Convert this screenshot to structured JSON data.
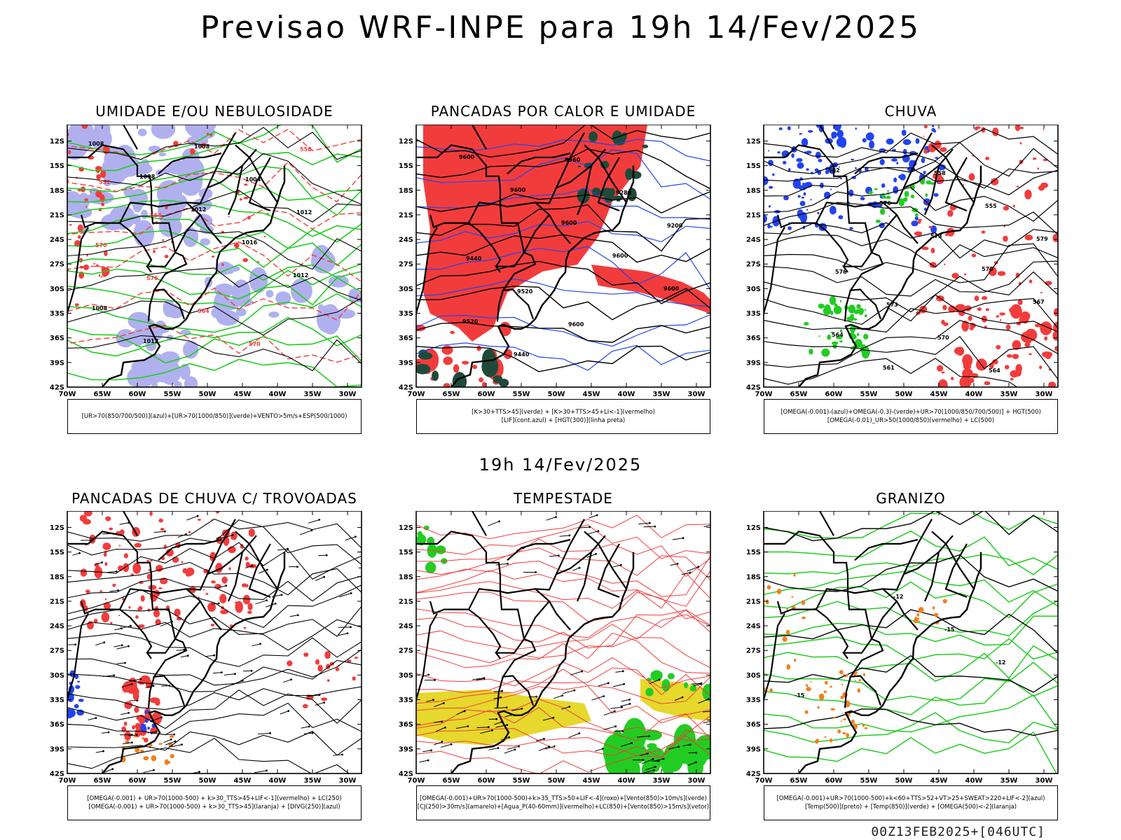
{
  "header": {
    "title": "Previsao WRF-INPE  para 19h 14/Fev/2025"
  },
  "middle": {
    "title": "19h 14/Fev/2025"
  },
  "footer": {
    "run": "00Z13FEB2025+[046UTC]"
  },
  "axes": {
    "lat_labels": [
      "12S",
      "15S",
      "18S",
      "21S",
      "24S",
      "27S",
      "30S",
      "33S",
      "36S",
      "39S",
      "42S"
    ],
    "lon_labels": [
      "70W",
      "65W",
      "60W",
      "55W",
      "50W",
      "45W",
      "40W",
      "35W",
      "30W"
    ]
  },
  "colors": {
    "red": "#f23c3c",
    "green": "#22cc22",
    "blue": "#2244ee",
    "lavender": "#b0b0ee",
    "yellow": "#e6d82c",
    "orange": "#f08020",
    "darkgreen": "#1f4a3a"
  },
  "panels": [
    {
      "id": "umidade",
      "title": "UMIDADE E/OU NEBULOSIDADE",
      "legend": [
        "[UR>70(850/700/500)](azul)+[UR>70(1000/850)](verde)+VENTO>5m/s+ESP(500/1000)"
      ],
      "contour_labels": [
        "1008",
        "1008",
        "1012",
        "1016",
        "1012",
        "1008",
        "1012",
        "1008",
        "1004",
        "1012",
        "570",
        "576",
        "564",
        "570",
        "558",
        "552",
        "564"
      ]
    },
    {
      "id": "pancadas-calor",
      "title": "PANCADAS POR CALOR E UMIDADE",
      "legend": [
        "[K>30+TTS>45](verde) + [K>30+TTS>45+LI<-1](vermelho)",
        "[LIF](cont.azul) + [HGT(300)](linha preta)"
      ],
      "contour_labels": [
        "9600",
        "9600",
        "9600",
        "9600",
        "9600",
        "9520",
        "9440",
        "9360",
        "9280",
        "9200",
        "9440",
        "9520",
        "9600"
      ]
    },
    {
      "id": "chuva",
      "title": "CHUVA",
      "legend": [
        "[OMEGA(-0.001)-(azul)+OMEGA(-0.3)-(verde)+UR>70(1000/850/700/500)] + HGT(500)",
        "[OMEGA(-0.01)_UR>50(1000/850)(vermelho) + LC(500)"
      ],
      "contour_labels": [
        "582",
        "576",
        "573",
        "570",
        "567",
        "564",
        "561",
        "558",
        "555",
        "579",
        "576",
        "573",
        "570",
        "564"
      ]
    },
    {
      "id": "pancadas-trovoadas",
      "title": "PANCADAS DE CHUVA C/ TROVOADAS",
      "legend": [
        "[OMEGA(-0.001) + UR>70(1000-500) + k>30_TTS>45+LIF<-1](vermelho) + LC(250)",
        "[OMEGA(-0.001) + UR>70(1000-500) + k>30_TTS>45](laranja) + [DIVG(250)](azul)"
      ],
      "contour_labels": []
    },
    {
      "id": "tempestade",
      "title": "TEMPESTADE",
      "legend": [
        "[OMEGA(-0.001)+UR>70(1000-500)+k>35_TTS>50+LIF<-4](roxo)+[Vento(850)>10m/s](verde)",
        "[CJ(250)>30m/s](amarelo)+[Agua_P(40-60mm)](vermelho)+LC(850)+[Vento(850)>15m/s](vetor)"
      ],
      "contour_labels": []
    },
    {
      "id": "granizo",
      "title": "GRANIZO",
      "legend": [
        "[OMEGA(-0.001)+UR>70(1000-500)+k<60+TTS>52+VT>25+SWEAT>220+LIF<-2](azul)",
        "[Temp(500)](preto) + [Temp(850)](verde) + [OMEGA(500)<-2](laranja)"
      ],
      "contour_labels": [
        "-12",
        "-15",
        "-12",
        "-15"
      ]
    }
  ]
}
